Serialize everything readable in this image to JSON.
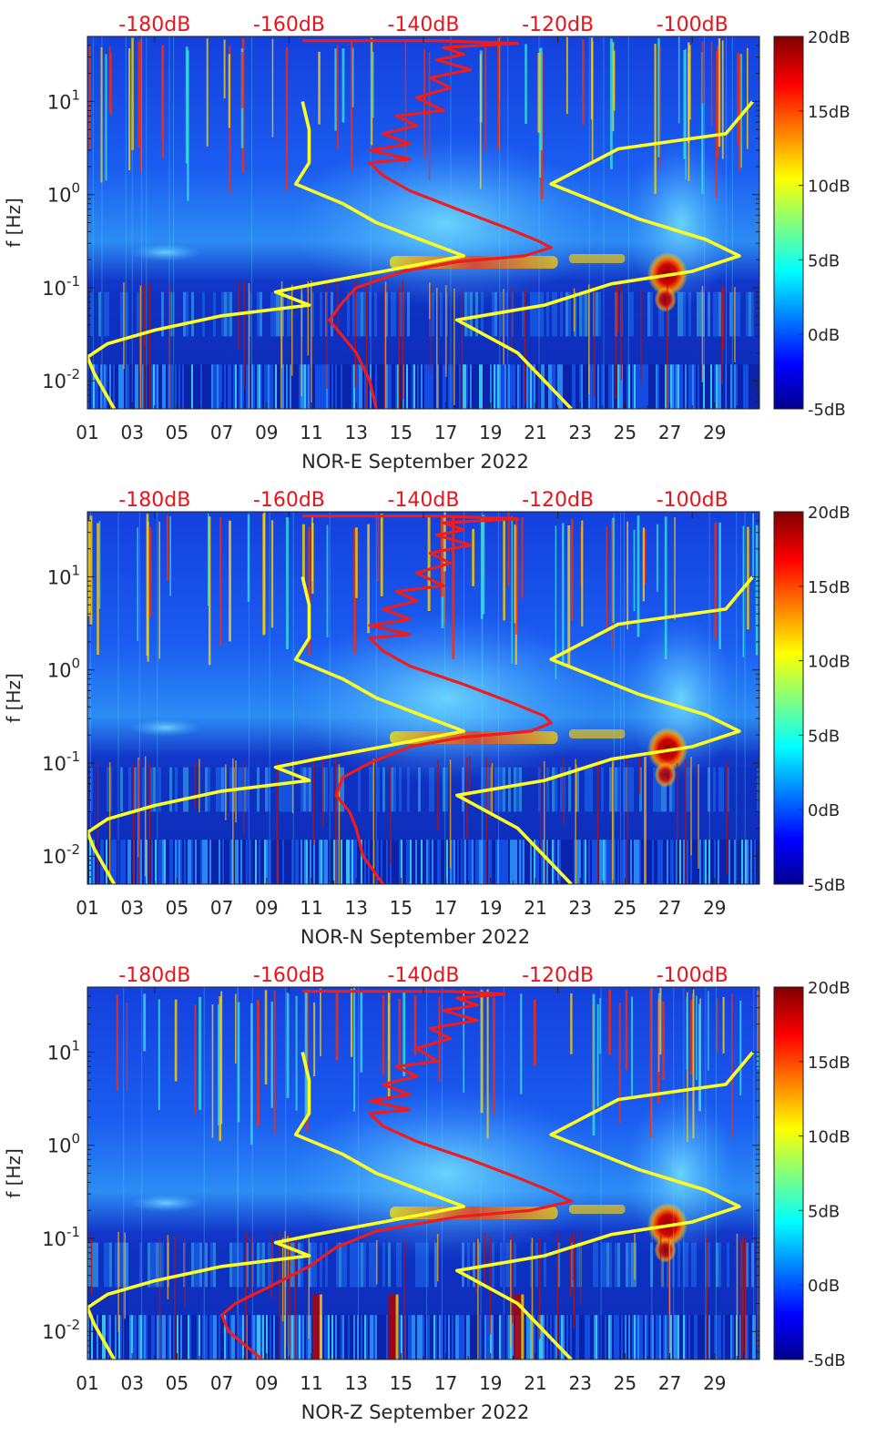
{
  "chart_data": [
    {
      "type": "heatmap",
      "xlabel": "NOR-E September 2022",
      "ylabel": "f [Hz]",
      "x_ticks": [
        "01",
        "03",
        "05",
        "07",
        "09",
        "11",
        "13",
        "15",
        "17",
        "19",
        "21",
        "23",
        "25",
        "27",
        "29"
      ],
      "x_range": [
        1,
        31
      ],
      "y_scale": "log",
      "y_range": [
        0.005,
        50
      ],
      "y_ticks": [
        {
          "base": "10",
          "exp": "-2"
        },
        {
          "base": "10",
          "exp": "-1"
        },
        {
          "base": "10",
          "exp": "0"
        },
        {
          "base": "10",
          "exp": "1"
        }
      ],
      "top_axis_ticks": [
        "-180dB",
        "-160dB",
        "-140dB",
        "-120dB",
        "-100dB"
      ],
      "top_axis_range": [
        -190,
        -90
      ],
      "colorbar": {
        "ticks": [
          "20dB",
          "15dB",
          "10dB",
          "5dB",
          "0dB",
          "-5dB"
        ],
        "range": [
          -5,
          20
        ],
        "colormap": "jet"
      },
      "series": [
        {
          "color": "#ffff22",
          "points": [
            [
              -158,
              10
            ],
            [
              -157,
              5
            ],
            [
              -157,
              2.2
            ],
            [
              -159,
              1.3
            ],
            [
              -152,
              0.8
            ],
            [
              -147,
              0.5
            ],
            [
              -140,
              0.32
            ],
            [
              -134,
              0.22
            ],
            [
              -146,
              0.15
            ],
            [
              -156,
              0.11
            ],
            [
              -162,
              0.09
            ],
            [
              -157,
              0.065
            ],
            [
              -170,
              0.05
            ],
            [
              -180,
              0.035
            ],
            [
              -187,
              0.025
            ],
            [
              -190,
              0.018
            ],
            [
              -189,
              0.012
            ],
            [
              -186,
              0.005
            ]
          ]
        },
        {
          "color": "#ffff22",
          "points": [
            [
              -91,
              10
            ],
            [
              -95,
              4.5
            ],
            [
              -111,
              3.1
            ],
            [
              -121,
              1.3
            ],
            [
              -108,
              0.55
            ],
            [
              -98,
              0.33
            ],
            [
              -93,
              0.22
            ],
            [
              -100,
              0.15
            ],
            [
              -112,
              0.11
            ],
            [
              -122,
              0.065
            ],
            [
              -135,
              0.045
            ],
            [
              -126,
              0.02
            ],
            [
              -118,
              0.005
            ]
          ]
        },
        {
          "color": "#ee1c1c",
          "points": [
            [
              -158,
              45
            ],
            [
              -138,
              45
            ],
            [
              -126,
              42
            ],
            [
              -137,
              38
            ],
            [
              -134,
              32
            ],
            [
              -138,
              28
            ],
            [
              -133,
              22
            ],
            [
              -139,
              18
            ],
            [
              -136,
              14
            ],
            [
              -141,
              11
            ],
            [
              -137,
              8
            ],
            [
              -144,
              7
            ],
            [
              -141,
              5.5
            ],
            [
              -146,
              4.5
            ],
            [
              -142,
              3.5
            ],
            [
              -148,
              3
            ],
            [
              -142,
              2.4
            ],
            [
              -148,
              2.2
            ],
            [
              -146,
              1.6
            ],
            [
              -142,
              1.1
            ],
            [
              -135,
              0.7
            ],
            [
              -128,
              0.45
            ],
            [
              -123,
              0.32
            ],
            [
              -121,
              0.27
            ],
            [
              -125,
              0.22
            ],
            [
              -135,
              0.19
            ],
            [
              -143,
              0.15
            ],
            [
              -150,
              0.1
            ],
            [
              -152,
              0.07
            ],
            [
              -154,
              0.045
            ],
            [
              -152,
              0.03
            ],
            [
              -150,
              0.02
            ],
            [
              -148,
              0.01
            ],
            [
              -147,
              0.005
            ]
          ]
        }
      ]
    },
    {
      "type": "heatmap",
      "xlabel": "NOR-N September 2022",
      "ylabel": "f [Hz]",
      "x_ticks": [
        "01",
        "03",
        "05",
        "07",
        "09",
        "11",
        "13",
        "15",
        "17",
        "19",
        "21",
        "23",
        "25",
        "27",
        "29"
      ],
      "x_range": [
        1,
        31
      ],
      "y_scale": "log",
      "y_range": [
        0.005,
        50
      ],
      "y_ticks": [
        {
          "base": "10",
          "exp": "-2"
        },
        {
          "base": "10",
          "exp": "-1"
        },
        {
          "base": "10",
          "exp": "0"
        },
        {
          "base": "10",
          "exp": "1"
        }
      ],
      "top_axis_ticks": [
        "-180dB",
        "-160dB",
        "-140dB",
        "-120dB",
        "-100dB"
      ],
      "top_axis_range": [
        -190,
        -90
      ],
      "colorbar": {
        "ticks": [
          "20dB",
          "15dB",
          "10dB",
          "5dB",
          "0dB",
          "-5dB"
        ],
        "range": [
          -5,
          20
        ],
        "colormap": "jet"
      },
      "series": [
        {
          "color": "#ffff22",
          "points": [
            [
              -158,
              10
            ],
            [
              -157,
              5
            ],
            [
              -157,
              2.2
            ],
            [
              -159,
              1.3
            ],
            [
              -152,
              0.8
            ],
            [
              -147,
              0.5
            ],
            [
              -140,
              0.32
            ],
            [
              -134,
              0.22
            ],
            [
              -146,
              0.15
            ],
            [
              -156,
              0.11
            ],
            [
              -162,
              0.09
            ],
            [
              -157,
              0.065
            ],
            [
              -170,
              0.05
            ],
            [
              -180,
              0.035
            ],
            [
              -187,
              0.025
            ],
            [
              -190,
              0.018
            ],
            [
              -189,
              0.012
            ],
            [
              -186,
              0.005
            ]
          ]
        },
        {
          "color": "#ffff22",
          "points": [
            [
              -91,
              10
            ],
            [
              -95,
              4.5
            ],
            [
              -111,
              3.1
            ],
            [
              -121,
              1.3
            ],
            [
              -108,
              0.55
            ],
            [
              -98,
              0.33
            ],
            [
              -93,
              0.22
            ],
            [
              -100,
              0.15
            ],
            [
              -112,
              0.11
            ],
            [
              -122,
              0.065
            ],
            [
              -135,
              0.045
            ],
            [
              -126,
              0.02
            ],
            [
              -118,
              0.005
            ]
          ]
        },
        {
          "color": "#ee1c1c",
          "points": [
            [
              -158,
              45
            ],
            [
              -138,
              45
            ],
            [
              -126,
              42
            ],
            [
              -137,
              38
            ],
            [
              -134,
              32
            ],
            [
              -138,
              28
            ],
            [
              -133,
              22
            ],
            [
              -139,
              18
            ],
            [
              -136,
              14
            ],
            [
              -141,
              11
            ],
            [
              -137,
              8
            ],
            [
              -144,
              7
            ],
            [
              -141,
              5.5
            ],
            [
              -146,
              4.5
            ],
            [
              -142,
              3.5
            ],
            [
              -148,
              3
            ],
            [
              -142,
              2.4
            ],
            [
              -148,
              2.2
            ],
            [
              -146,
              1.6
            ],
            [
              -142,
              1.1
            ],
            [
              -134,
              0.7
            ],
            [
              -127,
              0.45
            ],
            [
              -122,
              0.32
            ],
            [
              -121,
              0.27
            ],
            [
              -124,
              0.22
            ],
            [
              -134,
              0.19
            ],
            [
              -142,
              0.15
            ],
            [
              -148,
              0.1
            ],
            [
              -152,
              0.07
            ],
            [
              -153,
              0.045
            ],
            [
              -151,
              0.03
            ],
            [
              -150,
              0.02
            ],
            [
              -149,
              0.01
            ],
            [
              -146,
              0.005
            ]
          ]
        }
      ]
    },
    {
      "type": "heatmap",
      "xlabel": "NOR-Z September 2022",
      "ylabel": "f [Hz]",
      "x_ticks": [
        "01",
        "03",
        "05",
        "07",
        "09",
        "11",
        "13",
        "15",
        "17",
        "19",
        "21",
        "23",
        "25",
        "27",
        "29"
      ],
      "x_range": [
        1,
        31
      ],
      "y_scale": "log",
      "y_range": [
        0.005,
        50
      ],
      "y_ticks": [
        {
          "base": "10",
          "exp": "-2"
        },
        {
          "base": "10",
          "exp": "-1"
        },
        {
          "base": "10",
          "exp": "0"
        },
        {
          "base": "10",
          "exp": "1"
        }
      ],
      "top_axis_ticks": [
        "-180dB",
        "-160dB",
        "-140dB",
        "-120dB",
        "-100dB"
      ],
      "top_axis_range": [
        -190,
        -90
      ],
      "colorbar": {
        "ticks": [
          "20dB",
          "15dB",
          "10dB",
          "5dB",
          "0dB",
          "-5dB"
        ],
        "range": [
          -5,
          20
        ],
        "colormap": "jet"
      },
      "series": [
        {
          "color": "#ffff22",
          "points": [
            [
              -158,
              10
            ],
            [
              -157,
              5
            ],
            [
              -157,
              2.2
            ],
            [
              -159,
              1.3
            ],
            [
              -152,
              0.8
            ],
            [
              -147,
              0.5
            ],
            [
              -140,
              0.32
            ],
            [
              -134,
              0.22
            ],
            [
              -146,
              0.15
            ],
            [
              -156,
              0.11
            ],
            [
              -162,
              0.09
            ],
            [
              -157,
              0.065
            ],
            [
              -170,
              0.05
            ],
            [
              -180,
              0.035
            ],
            [
              -187,
              0.025
            ],
            [
              -190,
              0.018
            ],
            [
              -189,
              0.012
            ],
            [
              -186,
              0.005
            ]
          ]
        },
        {
          "color": "#ffff22",
          "points": [
            [
              -91,
              10
            ],
            [
              -95,
              4.5
            ],
            [
              -111,
              3.1
            ],
            [
              -121,
              1.3
            ],
            [
              -108,
              0.55
            ],
            [
              -98,
              0.33
            ],
            [
              -93,
              0.22
            ],
            [
              -100,
              0.15
            ],
            [
              -112,
              0.11
            ],
            [
              -122,
              0.065
            ],
            [
              -135,
              0.045
            ],
            [
              -126,
              0.02
            ],
            [
              -118,
              0.005
            ]
          ]
        },
        {
          "color": "#ee1c1c",
          "points": [
            [
              -158,
              45
            ],
            [
              -136,
              45
            ],
            [
              -128,
              42
            ],
            [
              -135,
              38
            ],
            [
              -132,
              32
            ],
            [
              -137,
              28
            ],
            [
              -132,
              22
            ],
            [
              -139,
              18
            ],
            [
              -136,
              14
            ],
            [
              -141,
              11
            ],
            [
              -138,
              8
            ],
            [
              -144,
              7
            ],
            [
              -141,
              5.5
            ],
            [
              -146,
              4.5
            ],
            [
              -142,
              3.5
            ],
            [
              -148,
              3
            ],
            [
              -142,
              2.4
            ],
            [
              -148,
              2.2
            ],
            [
              -146,
              1.6
            ],
            [
              -141,
              1.1
            ],
            [
              -133,
              0.7
            ],
            [
              -126,
              0.45
            ],
            [
              -121,
              0.32
            ],
            [
              -118,
              0.25
            ],
            [
              -124,
              0.2
            ],
            [
              -135,
              0.17
            ],
            [
              -147,
              0.12
            ],
            [
              -153,
              0.08
            ],
            [
              -157,
              0.05
            ],
            [
              -163,
              0.03
            ],
            [
              -168,
              0.02
            ],
            [
              -170,
              0.015
            ],
            [
              -169,
              0.01
            ],
            [
              -164,
              0.005
            ]
          ]
        }
      ]
    }
  ]
}
